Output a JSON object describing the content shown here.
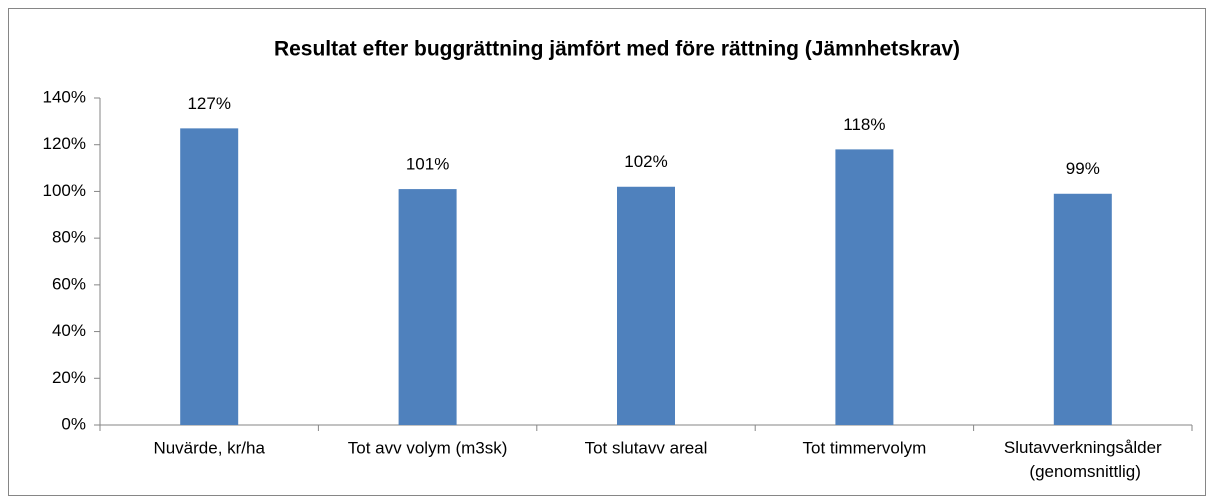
{
  "chart_data": {
    "type": "bar",
    "title": "Resultat efter buggrättning jämfört med före rättning (Jämnhetskrav)",
    "categories": [
      "Nuvärde, kr/ha",
      "Tot avv volym (m3sk)",
      "Tot slutavv areal",
      "Tot timmervolym",
      "Slutavverkningsålder\n(genomsnittlig)"
    ],
    "values": [
      127,
      101,
      102,
      118,
      99
    ],
    "value_labels": [
      "127%",
      "101%",
      "102%",
      "118%",
      "99%"
    ],
    "color": "#4f81bd",
    "ylim": [
      0,
      140
    ],
    "yticks": [
      {
        "value": 0,
        "label": "0%"
      },
      {
        "value": 20,
        "label": "20%"
      },
      {
        "value": 40,
        "label": "40%"
      },
      {
        "value": 60,
        "label": "60%"
      },
      {
        "value": 80,
        "label": "80%"
      },
      {
        "value": 100,
        "label": "100%"
      },
      {
        "value": 120,
        "label": "120%"
      },
      {
        "value": 140,
        "label": "140%"
      }
    ],
    "grid": false
  }
}
